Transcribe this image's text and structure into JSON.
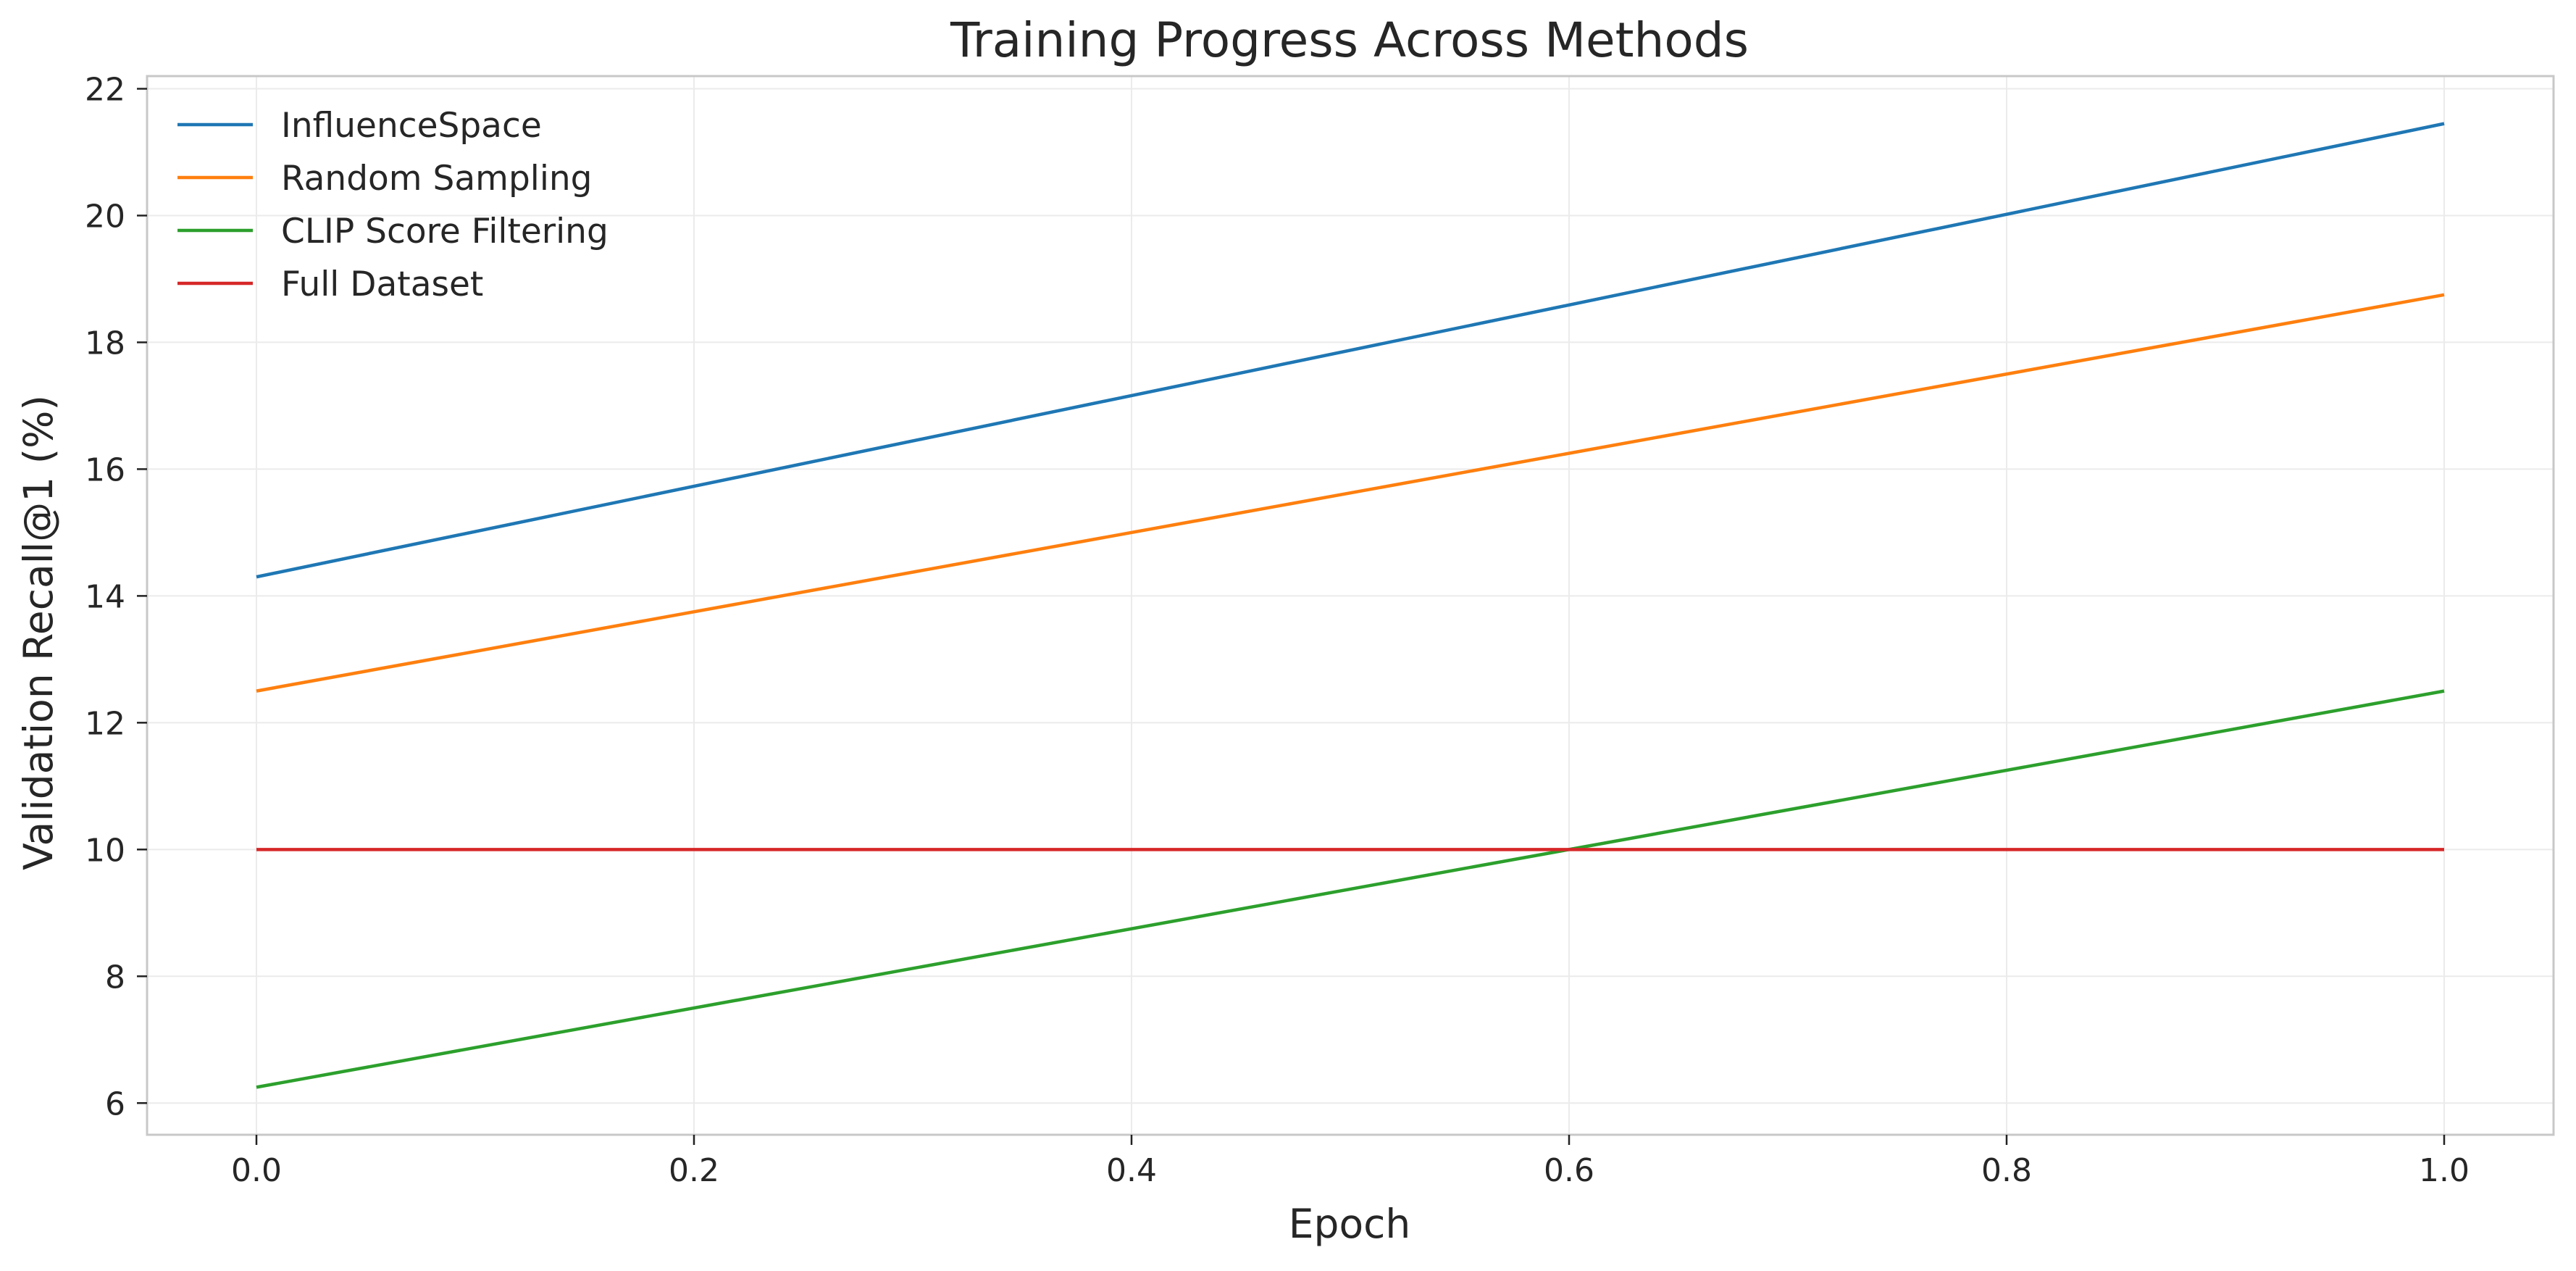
{
  "chart_data": {
    "type": "line",
    "title": "Training Progress Across Methods",
    "xlabel": "Epoch",
    "ylabel": "Validation Recall@1 (%)",
    "xlim": [
      -0.05,
      1.05
    ],
    "ylim": [
      5.5,
      22.2
    ],
    "x_ticks": [
      0.0,
      0.2,
      0.4,
      0.6,
      0.8,
      1.0
    ],
    "x_tick_labels": [
      "0.0",
      "0.2",
      "0.4",
      "0.6",
      "0.8",
      "1.0"
    ],
    "y_ticks": [
      6,
      8,
      10,
      12,
      14,
      16,
      18,
      20,
      22
    ],
    "y_tick_labels": [
      "6",
      "8",
      "10",
      "12",
      "14",
      "16",
      "18",
      "20",
      "22"
    ],
    "grid": true,
    "legend_position": "top-left",
    "x": [
      0.0,
      1.0
    ],
    "series": [
      {
        "name": "InfluenceSpace",
        "color": "#1f77b4",
        "values": [
          14.3,
          21.45
        ]
      },
      {
        "name": "Random Sampling",
        "color": "#ff7f0e",
        "values": [
          12.5,
          18.75
        ]
      },
      {
        "name": "CLIP Score Filtering",
        "color": "#2ca02c",
        "values": [
          6.25,
          12.5
        ]
      },
      {
        "name": "Full Dataset",
        "color": "#d62728",
        "values": [
          10.0,
          10.0
        ]
      }
    ]
  }
}
